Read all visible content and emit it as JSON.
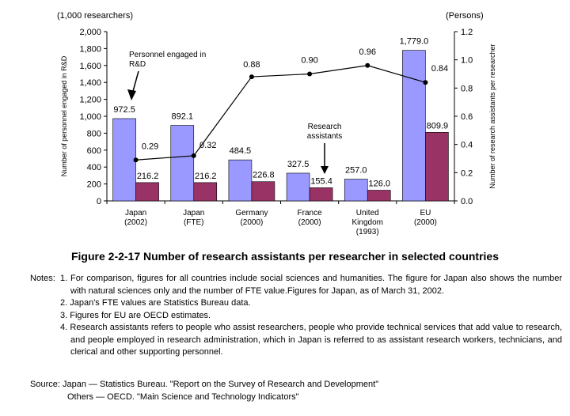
{
  "chart_data": {
    "type": "bar",
    "left_unit": "(1,000 researchers)",
    "right_unit": "(Persons)",
    "ylabel_left": "Number of personnel engaged in R&D",
    "ylabel_right": "Number of research assistants per researcher",
    "ylim_left": [
      0,
      2000
    ],
    "left_ticks": [
      "0",
      "200",
      "400",
      "600",
      "800",
      "1,000",
      "1,200",
      "1,400",
      "1,600",
      "1,800",
      "2,000"
    ],
    "ylim_right": [
      0,
      1.2
    ],
    "right_ticks": [
      "0.0",
      "0.2",
      "0.4",
      "0.6",
      "0.8",
      "1.0",
      "1.2"
    ],
    "categories": [
      [
        "Japan",
        "(2002)"
      ],
      [
        "Japan",
        "(FTE)"
      ],
      [
        "Germany",
        "(2000)"
      ],
      [
        "France",
        "(2000)"
      ],
      [
        "United",
        "Kingdom",
        "(1993)"
      ],
      [
        "EU",
        "(2000)"
      ]
    ],
    "series": [
      {
        "name": "Personnel engaged in R&D",
        "axis": "left",
        "kind": "bar",
        "color": "#9999ff",
        "values": [
          972.5,
          892.1,
          484.5,
          327.5,
          257.0,
          1779.0
        ],
        "labels": [
          "972.5",
          "892.1",
          "484.5",
          "327.5",
          "257.0",
          "1,779.0"
        ]
      },
      {
        "name": "Research assistants",
        "axis": "left",
        "kind": "bar",
        "color": "#993366",
        "values": [
          216.2,
          216.2,
          226.8,
          155.4,
          126.0,
          809.9
        ],
        "labels": [
          "216.2",
          "216.2",
          "226.8",
          "155.4",
          "126.0",
          "809.9"
        ]
      },
      {
        "name": "",
        "axis": "right",
        "kind": "line",
        "color": "#000000",
        "values": [
          0.29,
          0.32,
          0.88,
          0.9,
          0.96,
          0.84
        ],
        "labels": [
          "0.29",
          "0.32",
          "0.88",
          "0.90",
          "0.96",
          "0.84"
        ]
      }
    ],
    "annotations": [
      {
        "lines": [
          "Personnel engaged in",
          "R&D"
        ]
      },
      {
        "lines": [
          "Research",
          "assistants"
        ]
      }
    ],
    "grid": false
  },
  "figure": {
    "title": "Figure 2-2-17  Number of research assistants per researcher in selected countries"
  },
  "notes": {
    "label": "Notes:",
    "items": [
      "1. For comparison, figures for all countries include social sciences and humanities. The figure for Japan also shows the number with natural sciences only and the number of FTE value.Figures for Japan, as of March 31, 2002.",
      "2. Japan's FTE values are Statistics Bureau data.",
      "3. Figures for EU are OECD estimates.",
      "4. Research assistants refers to people who assist researchers, people who provide technical services that add value to research, and people employed in research administration, which in Japan is referred to as assistant research workers, technicians, and clerical and other supporting personnel."
    ]
  },
  "source": {
    "line1": "Source: Japan — Statistics Bureau. \"Report on the Survey of Research and Development\"",
    "line2": "Others — OECD. \"Main Science and Technology Indicators\""
  }
}
